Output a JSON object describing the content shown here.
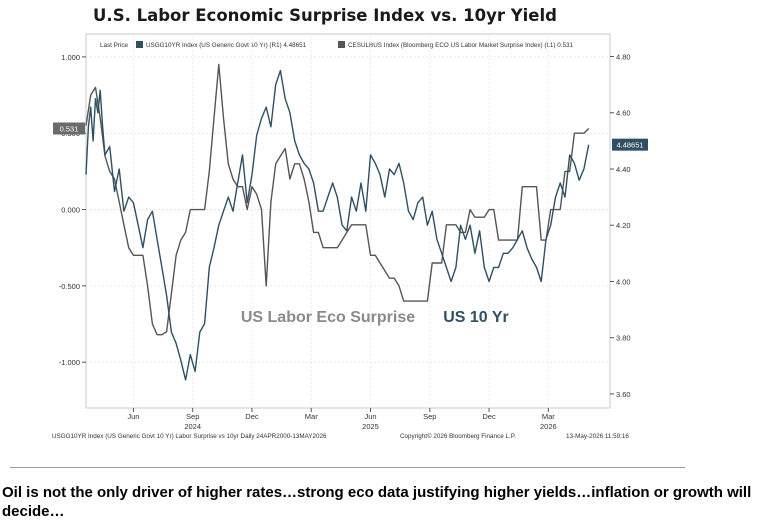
{
  "chart_data": {
    "type": "line",
    "title": "U.S. Labor Economic Surprise Index vs. 10yr Yield",
    "legend": {
      "lead": "Last Price",
      "entries": [
        {
          "text": "USGG10YR Index (US Generic Govt 10 Yr) (R1) 4.48651",
          "color": "#2f4f63"
        },
        {
          "text": "CESULBUS Index (Bloomberg ECO US Labor Market Surprise Index) (L1) 0.531",
          "color": "#555555"
        }
      ]
    },
    "left_axis": {
      "ticks": [
        "1.000",
        "0.500",
        "0.000",
        "-0.500",
        "-1.000"
      ],
      "tick_values": [
        1.0,
        0.5,
        0.0,
        -0.5,
        -1.0
      ],
      "ylim": [
        -1.3,
        1.15
      ],
      "last_label": "0.531"
    },
    "right_axis": {
      "ticks": [
        "4.80",
        "4.60",
        "4.40",
        "4.20",
        "4.00",
        "3.80",
        "3.60"
      ],
      "tick_values": [
        4.8,
        4.6,
        4.4,
        4.2,
        4.0,
        3.8,
        3.6
      ],
      "ylim": [
        3.55,
        4.88
      ],
      "last_label": "4.48651"
    },
    "x_axis": {
      "months": [
        "Jun",
        "Sep",
        "Dec",
        "Mar",
        "Jun",
        "Sep",
        "Dec",
        "Mar"
      ],
      "month_positions": [
        2024.42,
        2024.67,
        2024.92,
        2025.17,
        2025.42,
        2025.67,
        2025.92,
        2026.17
      ],
      "years": [
        "2024",
        "2025",
        "2026"
      ],
      "year_positions": [
        2024.67,
        2025.42,
        2026.17
      ],
      "xlim": [
        2024.22,
        2026.43
      ]
    },
    "annotations": [
      {
        "text": "US Labor Eco Surprise",
        "color": "#8a8a8a"
      },
      {
        "text": "US 10 Yr",
        "color": "#2f4f63"
      }
    ],
    "series": [
      {
        "name": "US Labor Eco Surprise",
        "axis": "left",
        "color": "#555555",
        "x": [
          2024.22,
          2024.24,
          2024.26,
          2024.28,
          2024.3,
          2024.32,
          2024.34,
          2024.36,
          2024.38,
          2024.4,
          2024.42,
          2024.44,
          2024.46,
          2024.48,
          2024.5,
          2024.52,
          2024.54,
          2024.56,
          2024.58,
          2024.6,
          2024.62,
          2024.64,
          2024.66,
          2024.68,
          2024.7,
          2024.72,
          2024.74,
          2024.76,
          2024.78,
          2024.8,
          2024.82,
          2024.84,
          2024.86,
          2024.88,
          2024.9,
          2024.92,
          2024.94,
          2024.96,
          2024.98,
          2025.0,
          2025.02,
          2025.04,
          2025.06,
          2025.08,
          2025.1,
          2025.12,
          2025.14,
          2025.16,
          2025.18,
          2025.2,
          2025.22,
          2025.24,
          2025.26,
          2025.28,
          2025.3,
          2025.32,
          2025.34,
          2025.36,
          2025.38,
          2025.4,
          2025.42,
          2025.44,
          2025.46,
          2025.48,
          2025.5,
          2025.52,
          2025.54,
          2025.56,
          2025.58,
          2025.6,
          2025.62,
          2025.64,
          2025.66,
          2025.68,
          2025.7,
          2025.72,
          2025.74,
          2025.76,
          2025.78,
          2025.8,
          2025.82,
          2025.84,
          2025.86,
          2025.88,
          2025.9,
          2025.92,
          2025.94,
          2025.96,
          2025.98,
          2026.0,
          2026.02,
          2026.04,
          2026.06,
          2026.08,
          2026.1,
          2026.12,
          2026.14,
          2026.16,
          2026.18,
          2026.2,
          2026.22,
          2026.24,
          2026.26,
          2026.28,
          2026.3,
          2026.32,
          2026.34
        ],
        "y": [
          0.55,
          0.75,
          0.8,
          0.6,
          0.35,
          0.25,
          0.2,
          0.05,
          -0.1,
          -0.25,
          -0.3,
          -0.3,
          -0.3,
          -0.5,
          -0.75,
          -0.82,
          -0.82,
          -0.8,
          -0.55,
          -0.3,
          -0.2,
          -0.15,
          0.0,
          0.0,
          0.0,
          0.0,
          0.25,
          0.6,
          0.95,
          0.6,
          0.3,
          0.2,
          0.15,
          0.15,
          0.0,
          0.15,
          0.1,
          0.0,
          -0.5,
          0.05,
          0.3,
          0.35,
          0.4,
          0.2,
          0.3,
          0.3,
          0.2,
          0.05,
          -0.15,
          -0.15,
          -0.25,
          -0.25,
          -0.25,
          -0.25,
          -0.2,
          -0.15,
          -0.1,
          -0.1,
          -0.1,
          -0.1,
          -0.3,
          -0.3,
          -0.35,
          -0.4,
          -0.45,
          -0.45,
          -0.5,
          -0.6,
          -0.6,
          -0.6,
          -0.6,
          -0.6,
          -0.6,
          -0.35,
          -0.35,
          -0.35,
          -0.1,
          -0.1,
          -0.1,
          -0.15,
          -0.15,
          0.0,
          -0.05,
          -0.05,
          -0.05,
          0.0,
          0.0,
          -0.2,
          -0.2,
          -0.2,
          -0.2,
          -0.2,
          0.15,
          0.15,
          0.15,
          0.15,
          -0.2,
          -0.2,
          0.0,
          0.0,
          0.0,
          0.25,
          0.25,
          0.5,
          0.5,
          0.5,
          0.531
        ]
      },
      {
        "name": "US 10 Yr",
        "axis": "right",
        "color": "#2f4f63",
        "x": [
          2024.22,
          2024.23,
          2024.24,
          2024.25,
          2024.26,
          2024.27,
          2024.28,
          2024.29,
          2024.3,
          2024.32,
          2024.34,
          2024.36,
          2024.38,
          2024.4,
          2024.42,
          2024.44,
          2024.46,
          2024.48,
          2024.5,
          2024.52,
          2024.54,
          2024.56,
          2024.58,
          2024.6,
          2024.62,
          2024.64,
          2024.66,
          2024.68,
          2024.7,
          2024.72,
          2024.74,
          2024.76,
          2024.78,
          2024.8,
          2024.82,
          2024.84,
          2024.86,
          2024.88,
          2024.9,
          2024.92,
          2024.94,
          2024.96,
          2024.98,
          2025.0,
          2025.02,
          2025.04,
          2025.06,
          2025.08,
          2025.1,
          2025.12,
          2025.14,
          2025.16,
          2025.18,
          2025.2,
          2025.22,
          2025.24,
          2025.26,
          2025.28,
          2025.3,
          2025.32,
          2025.34,
          2025.36,
          2025.38,
          2025.4,
          2025.42,
          2025.44,
          2025.46,
          2025.48,
          2025.5,
          2025.52,
          2025.54,
          2025.56,
          2025.58,
          2025.6,
          2025.62,
          2025.64,
          2025.66,
          2025.68,
          2025.7,
          2025.72,
          2025.74,
          2025.76,
          2025.78,
          2025.8,
          2025.82,
          2025.84,
          2025.86,
          2025.88,
          2025.9,
          2025.92,
          2025.94,
          2025.96,
          2025.98,
          2026.0,
          2026.02,
          2026.04,
          2026.06,
          2026.08,
          2026.1,
          2026.12,
          2026.14,
          2026.16,
          2026.18,
          2026.2,
          2026.22,
          2026.24,
          2026.26,
          2026.28,
          2026.3,
          2026.32,
          2026.34
        ],
        "y": [
          4.38,
          4.55,
          4.62,
          4.5,
          4.65,
          4.6,
          4.68,
          4.55,
          4.45,
          4.48,
          4.32,
          4.4,
          4.25,
          4.3,
          4.28,
          4.2,
          4.12,
          4.22,
          4.25,
          4.15,
          4.05,
          3.95,
          3.82,
          3.78,
          3.72,
          3.65,
          3.74,
          3.68,
          3.82,
          3.85,
          4.05,
          4.12,
          4.2,
          4.25,
          4.3,
          4.25,
          4.35,
          4.45,
          4.28,
          4.38,
          4.52,
          4.58,
          4.62,
          4.55,
          4.7,
          4.75,
          4.65,
          4.6,
          4.5,
          4.45,
          4.42,
          4.4,
          4.35,
          4.25,
          4.25,
          4.3,
          4.35,
          4.3,
          4.2,
          4.18,
          4.3,
          4.25,
          4.35,
          4.25,
          4.45,
          4.42,
          4.38,
          4.3,
          4.4,
          4.38,
          4.42,
          4.35,
          4.25,
          4.22,
          4.28,
          4.3,
          4.2,
          4.25,
          4.15,
          4.1,
          4.05,
          4.0,
          4.05,
          4.2,
          4.15,
          4.2,
          4.1,
          4.18,
          4.05,
          4.0,
          4.05,
          4.05,
          4.1,
          4.1,
          4.12,
          4.15,
          4.18,
          4.12,
          4.08,
          4.05,
          4.0,
          4.15,
          4.2,
          4.3,
          4.35,
          4.3,
          4.45,
          4.42,
          4.36,
          4.4,
          4.48651
        ]
      }
    ],
    "footer": {
      "left": "USGG10YR Index (US Generic Govt 10 Yr) Labor Surprise vs 10yr Daily 24APR2000-13MAY2026",
      "center": "Copyright© 2026 Bloomberg Finance L.P.",
      "right": "13-May-2026 11:59:16"
    }
  },
  "caption": "Oil is not the only driver of higher rates…strong eco data justifying higher yields…inflation or growth will decide…"
}
